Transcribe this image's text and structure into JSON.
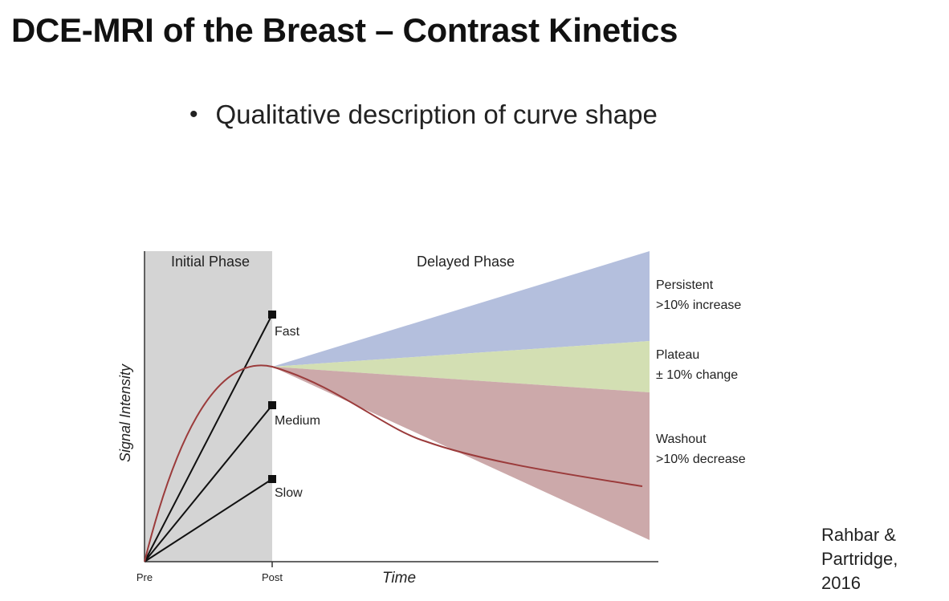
{
  "slide": {
    "title": "DCE-MRI of the Breast – Contrast Kinetics",
    "bullet": "Qualitative description of curve shape"
  },
  "diagram": {
    "phases": {
      "initial": "Initial Phase",
      "delayed": "Delayed Phase"
    },
    "axes": {
      "y_label": "Signal Intensity",
      "x_label": "Time",
      "x_start": "Pre",
      "x_post": "Post"
    },
    "uptake_rates": [
      "Fast",
      "Medium",
      "Slow"
    ],
    "curve_types": [
      {
        "name": "Persistent",
        "desc": ">10% increase",
        "color": "#b4bfdd"
      },
      {
        "name": "Plateau",
        "desc": "± 10% change",
        "color": "#d3dfb3"
      },
      {
        "name": "Washout",
        "desc": ">10% decrease",
        "color": "#cca9aa"
      }
    ],
    "colors": {
      "initial_phase_bg": "#d4d4d4",
      "curve": "#9b3b3b"
    }
  },
  "citation": {
    "line1": "Rahbar &",
    "line2": "Partridge,",
    "line3": "2016"
  }
}
